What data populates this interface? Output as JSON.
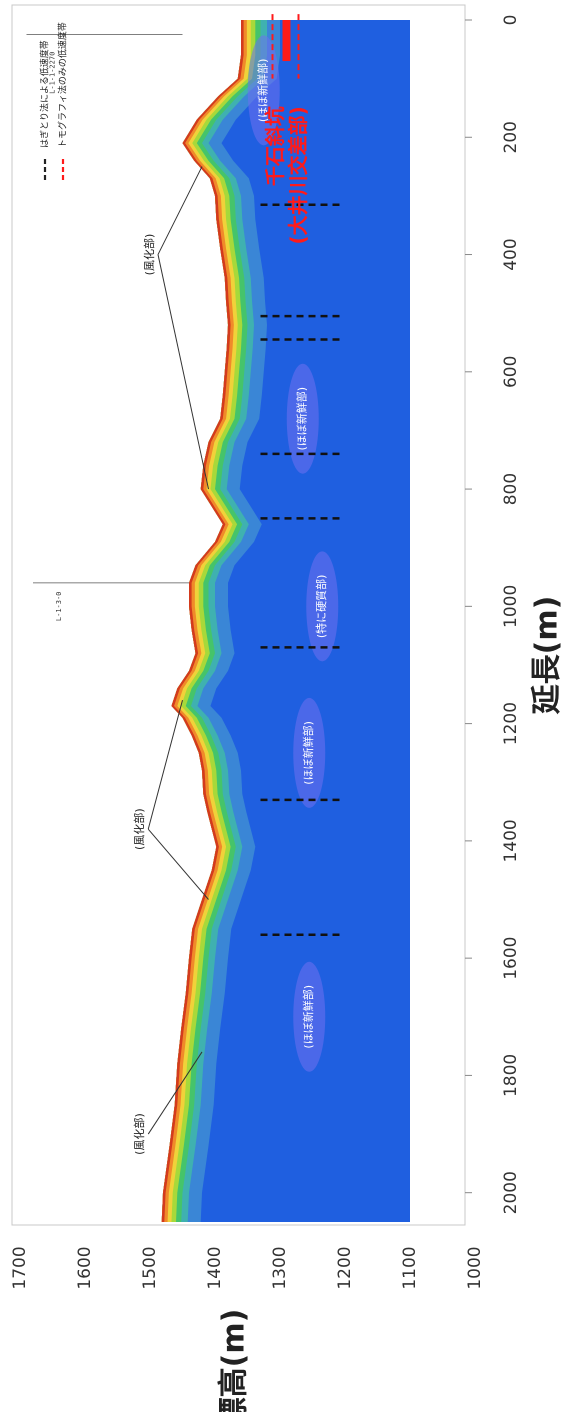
{
  "chart_data": {
    "type": "area",
    "xlabel": "延長(m)",
    "ylabel": "標高(m)",
    "xlim": [
      0,
      2050
    ],
    "ylim": [
      1000,
      1700
    ],
    "x_ticks": [
      0,
      200,
      400,
      600,
      800,
      1000,
      1200,
      1400,
      1600,
      1800,
      2000
    ],
    "y_ticks": [
      1000,
      1100,
      1200,
      1300,
      1400,
      1500,
      1600,
      1700
    ],
    "model_bottom": 1100,
    "surface_profile": {
      "x": [
        0,
        60,
        100,
        130,
        170,
        210,
        240,
        270,
        300,
        340,
        390,
        440,
        480,
        520,
        560,
        600,
        640,
        680,
        720,
        760,
        800,
        830,
        860,
        890,
        930,
        960,
        1000,
        1040,
        1080,
        1110,
        1140,
        1170,
        1190,
        1220,
        1250,
        1280,
        1320,
        1350,
        1380,
        1410,
        1450,
        1500,
        1550,
        1600,
        1660,
        1720,
        1780,
        1850,
        1920,
        2000,
        2050
      ],
      "y": [
        1360,
        1360,
        1365,
        1395,
        1428,
        1450,
        1432,
        1408,
        1400,
        1398,
        1392,
        1385,
        1383,
        1380,
        1382,
        1385,
        1388,
        1392,
        1410,
        1418,
        1422,
        1405,
        1388,
        1400,
        1430,
        1440,
        1440,
        1436,
        1430,
        1440,
        1458,
        1467,
        1450,
        1436,
        1425,
        1420,
        1418,
        1412,
        1405,
        1398,
        1405,
        1420,
        1435,
        1440,
        1445,
        1452,
        1458,
        1462,
        1470,
        1480,
        1482
      ]
    },
    "zones": [
      {
        "label": "(ほぼ新鮮部)",
        "x": 120,
        "y": 1325
      },
      {
        "label": "(ほぼ新鮮部)",
        "x": 680,
        "y": 1265
      },
      {
        "label": "(ほぼ新鮮部)",
        "x": 1250,
        "y": 1255
      },
      {
        "label": "(ほぼ新鮮部)",
        "x": 1700,
        "y": 1255
      },
      {
        "label": "(特に硬質部)",
        "x": 1000,
        "y": 1235
      }
    ],
    "annotations": [
      {
        "label": "(風化部)",
        "x": 400,
        "y": 1500
      },
      {
        "label": "(風化部)",
        "x": 1380,
        "y": 1515
      },
      {
        "label": "(風化部)",
        "x": 1900,
        "y": 1515
      }
    ],
    "boreholes_x": [
      315,
      505,
      545,
      740,
      850,
      1070,
      1330,
      1560
    ],
    "tunnel": {
      "label_line1": "千石斜坑",
      "label_line2": "(大井川交差部)"
    },
    "section_labels": [
      "L-1-1-2270",
      "L-1-3-0"
    ],
    "legend": [
      {
        "label": "はぎとり法による低速度帯",
        "color": "#222222"
      },
      {
        "label": "トモグラフィ法のみの低速度帯",
        "color": "#ff1a1a"
      }
    ]
  }
}
